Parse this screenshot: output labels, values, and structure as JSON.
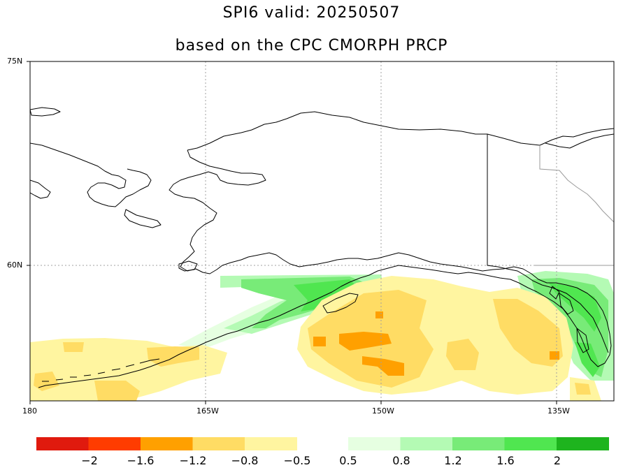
{
  "title": "SPI6  valid: 20250507",
  "subtitle": "based on the CPC CMORPH PRCP",
  "map": {
    "lat_labels": [
      "75N",
      "60N"
    ],
    "lon_labels": [
      "180",
      "165W",
      "150W",
      "135W"
    ],
    "gridlines": "dotted"
  },
  "colorbar": {
    "colors": {
      "c1": "#e01a0e",
      "c2": "#ff3c00",
      "c3": "#ffa000",
      "c4": "#ffdc64",
      "c5": "#fff5a0",
      "c6": "#e6ffe1",
      "c7": "#b4fab4",
      "c8": "#78eb78",
      "c9": "#50e650",
      "c10": "#1eb41e"
    },
    "dry_labels": [
      "−2",
      "−1.6",
      "−1.2",
      "−0.8",
      "−0.5"
    ],
    "wet_labels": [
      "0.5",
      "0.8",
      "1.2",
      "1.6",
      "2"
    ]
  }
}
